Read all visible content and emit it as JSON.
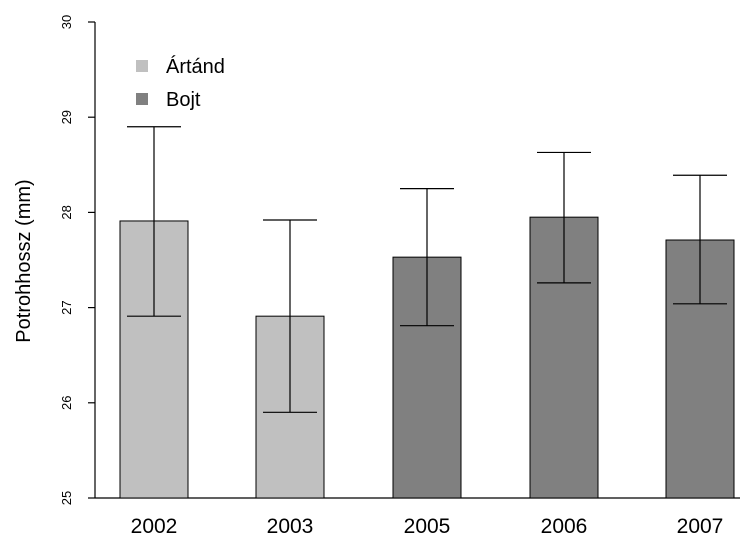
{
  "chart_data": {
    "type": "bar",
    "categories": [
      "2002",
      "2003",
      "2005",
      "2006",
      "2007"
    ],
    "values": [
      27.91,
      26.91,
      27.53,
      27.95,
      27.71
    ],
    "error_lower": [
      26.91,
      25.9,
      26.81,
      27.26,
      27.04
    ],
    "error_upper": [
      28.9,
      27.92,
      28.25,
      28.63,
      28.39
    ],
    "groups": [
      "Ártánd",
      "Ártánd",
      "Bojt",
      "Bojt",
      "Bojt"
    ],
    "legend": [
      {
        "name": "Ártánd",
        "color": "#c0c0c0"
      },
      {
        "name": "Bojt",
        "color": "#808080"
      }
    ],
    "legend_position": "top-left",
    "ylabel": "Potrohhossz (mm)",
    "xlabel": "",
    "title": "",
    "ylim": [
      25,
      30
    ],
    "yticks": [
      "25",
      "26",
      "27",
      "28",
      "29",
      "30"
    ],
    "grid": false
  }
}
